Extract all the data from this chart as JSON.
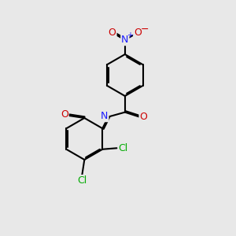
{
  "background_color": "#e8e8e8",
  "bond_color": "#000000",
  "line_width": 1.5,
  "dbo": 0.055,
  "atom_colors": {
    "N": "#1a1aff",
    "O": "#cc0000",
    "Cl": "#00aa00"
  },
  "figsize": [
    3.0,
    3.0
  ],
  "dpi": 100
}
